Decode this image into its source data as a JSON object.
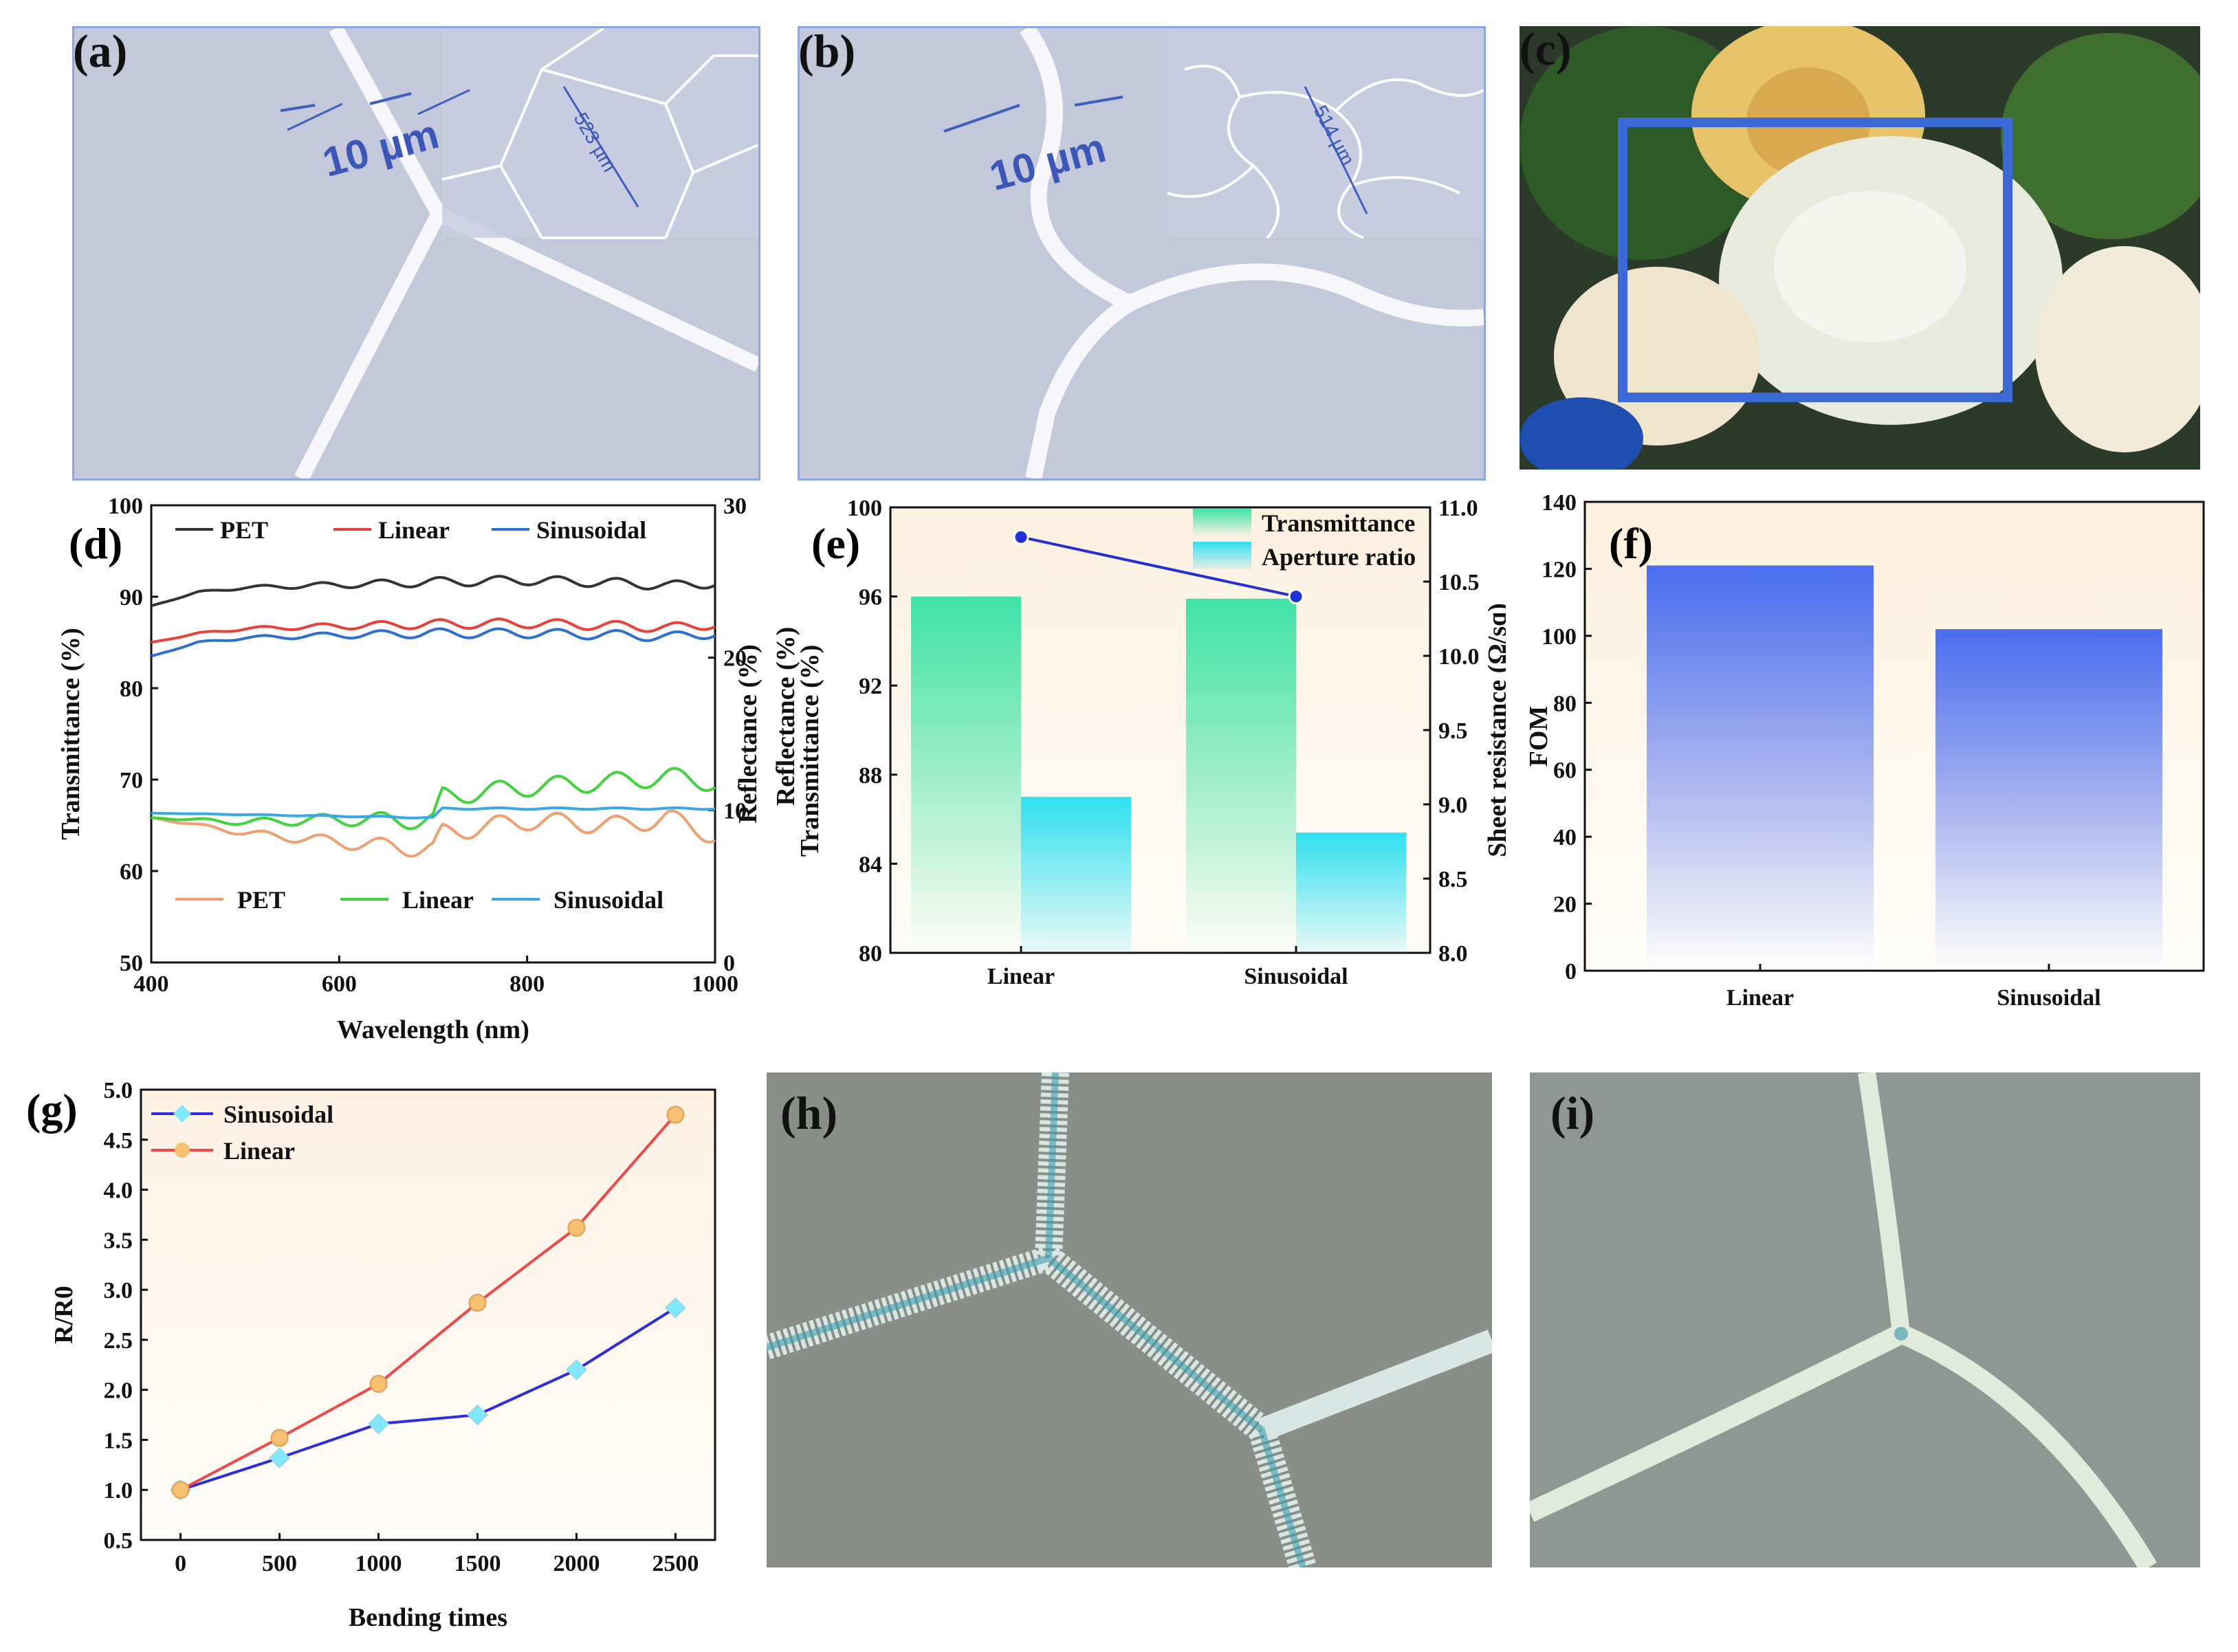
{
  "panels": {
    "a": {
      "label": "(a)",
      "scale_text": "10 µm",
      "inset_text": "523 µm"
    },
    "b": {
      "label": "(b)",
      "scale_text": "10 µm",
      "inset_text": "514 µm"
    },
    "c": {
      "label": "(c)"
    },
    "h": {
      "label": "(h)"
    },
    "i": {
      "label": "(i)"
    }
  },
  "chart_data": [
    {
      "id": "d",
      "label": "(d)",
      "type": "line",
      "xlabel": "Wavelength (nm)",
      "ylabel": "Transmittance (%)",
      "y2label": "Reflectance (%)",
      "xlim": [
        400,
        1000
      ],
      "ylim": [
        50,
        100
      ],
      "y2lim": [
        0,
        30
      ],
      "xticks": [
        400,
        600,
        800,
        1000
      ],
      "yticks": [
        50,
        60,
        70,
        80,
        90,
        100
      ],
      "y2ticks": [
        0,
        10,
        20,
        30
      ],
      "colors": {
        "PET_T": "#333333",
        "Linear_T": "#e8413c",
        "Sinusoidal_T": "#2f6fd0",
        "PET_R": "#f0a070",
        "Linear_R": "#3fd43a",
        "Sinusoidal_R": "#3aa8e8"
      },
      "transmittance": [
        {
          "name": "PET",
          "x": [
            400,
            450,
            500,
            600,
            700,
            800,
            900,
            950,
            1000
          ],
          "y": [
            89,
            90.5,
            91,
            91.3,
            91.6,
            91.8,
            91.5,
            91.2,
            91.5
          ]
        },
        {
          "name": "Linear",
          "x": [
            400,
            450,
            500,
            600,
            700,
            800,
            900,
            950,
            1000
          ],
          "y": [
            85,
            86,
            86.5,
            86.8,
            87,
            87.1,
            86.8,
            86.6,
            87
          ]
        },
        {
          "name": "Sinusoidal",
          "x": [
            400,
            450,
            500,
            600,
            700,
            800,
            900,
            950,
            1000
          ],
          "y": [
            83.5,
            85,
            85.5,
            85.8,
            86,
            86,
            85.8,
            85.6,
            86
          ]
        }
      ],
      "reflectance": [
        {
          "name": "PET",
          "x": [
            400,
            500,
            600,
            700,
            710,
            800,
            900,
            950,
            1000
          ],
          "y": [
            9.5,
            8.5,
            7.9,
            7.4,
            8.5,
            9.3,
            9.0,
            9.5,
            8.3
          ]
        },
        {
          "name": "Linear",
          "x": [
            400,
            500,
            600,
            700,
            710,
            800,
            900,
            950,
            1000
          ],
          "y": [
            9.5,
            9.2,
            9.4,
            9.3,
            10.9,
            11.5,
            11.9,
            12.2,
            11.8
          ]
        },
        {
          "name": "Sinusoidal",
          "x": [
            400,
            500,
            600,
            700,
            710,
            800,
            900,
            950,
            1000
          ],
          "y": [
            9.8,
            9.7,
            9.6,
            9.5,
            10.1,
            10.1,
            10.1,
            10.1,
            10.1
          ]
        }
      ]
    },
    {
      "id": "e",
      "label": "(e)",
      "type": "bar",
      "categories": [
        "Linear",
        "Sinusoidal"
      ],
      "ylabel": "Transmittance (%)",
      "ylabel_overlay": "Reflectance (%)",
      "y2label": "Sheet resistance (Ω/sq)",
      "ylim": [
        80,
        100
      ],
      "y2lim": [
        8.0,
        11.0
      ],
      "yticks": [
        80,
        84,
        88,
        92,
        96,
        100
      ],
      "y2ticks": [
        "8.0",
        "8.5",
        "9.0",
        "9.5",
        "10.0",
        "10.5",
        "11.0"
      ],
      "series": [
        {
          "name": "Transmittance",
          "values": [
            96.0,
            95.9
          ],
          "color": "#3ee3a8"
        },
        {
          "name": "Aperture ratio",
          "values": [
            87.0,
            85.4
          ],
          "color": "#2fe0f0"
        }
      ],
      "sheet_resistance": {
        "values": [
          10.8,
          10.4
        ],
        "color": "#2230d8"
      }
    },
    {
      "id": "f",
      "label": "(f)",
      "type": "bar",
      "categories": [
        "Linear",
        "Sinusoidal"
      ],
      "ylabel": "FOM",
      "ylim": [
        0,
        140
      ],
      "yticks": [
        0,
        20,
        40,
        60,
        80,
        100,
        120,
        140
      ],
      "values": [
        121,
        102
      ],
      "color": "#4a6cf0"
    },
    {
      "id": "g",
      "label": "(g)",
      "type": "line",
      "xlabel": "Bending times",
      "ylabel": "R/R0",
      "xlim": [
        -200,
        2700
      ],
      "ylim": [
        0.5,
        5.0
      ],
      "xticks": [
        0,
        500,
        1000,
        1500,
        2000,
        2500
      ],
      "yticks": [
        "0.5",
        "1.0",
        "1.5",
        "2.0",
        "2.5",
        "3.0",
        "3.5",
        "4.0",
        "4.5",
        "5.0"
      ],
      "series": [
        {
          "name": "Sinusoidal",
          "x": [
            0,
            500,
            1000,
            1500,
            2000,
            2500
          ],
          "y": [
            1.0,
            1.32,
            1.66,
            1.75,
            2.2,
            2.82
          ],
          "color": "#2c2ce0",
          "marker": "#7fe8ff"
        },
        {
          "name": "Linear",
          "x": [
            0,
            500,
            1000,
            1500,
            2000,
            2500
          ],
          "y": [
            1.0,
            1.52,
            2.06,
            2.87,
            3.62,
            4.75
          ],
          "color": "#f04848",
          "marker": "#f5c070"
        }
      ]
    }
  ]
}
